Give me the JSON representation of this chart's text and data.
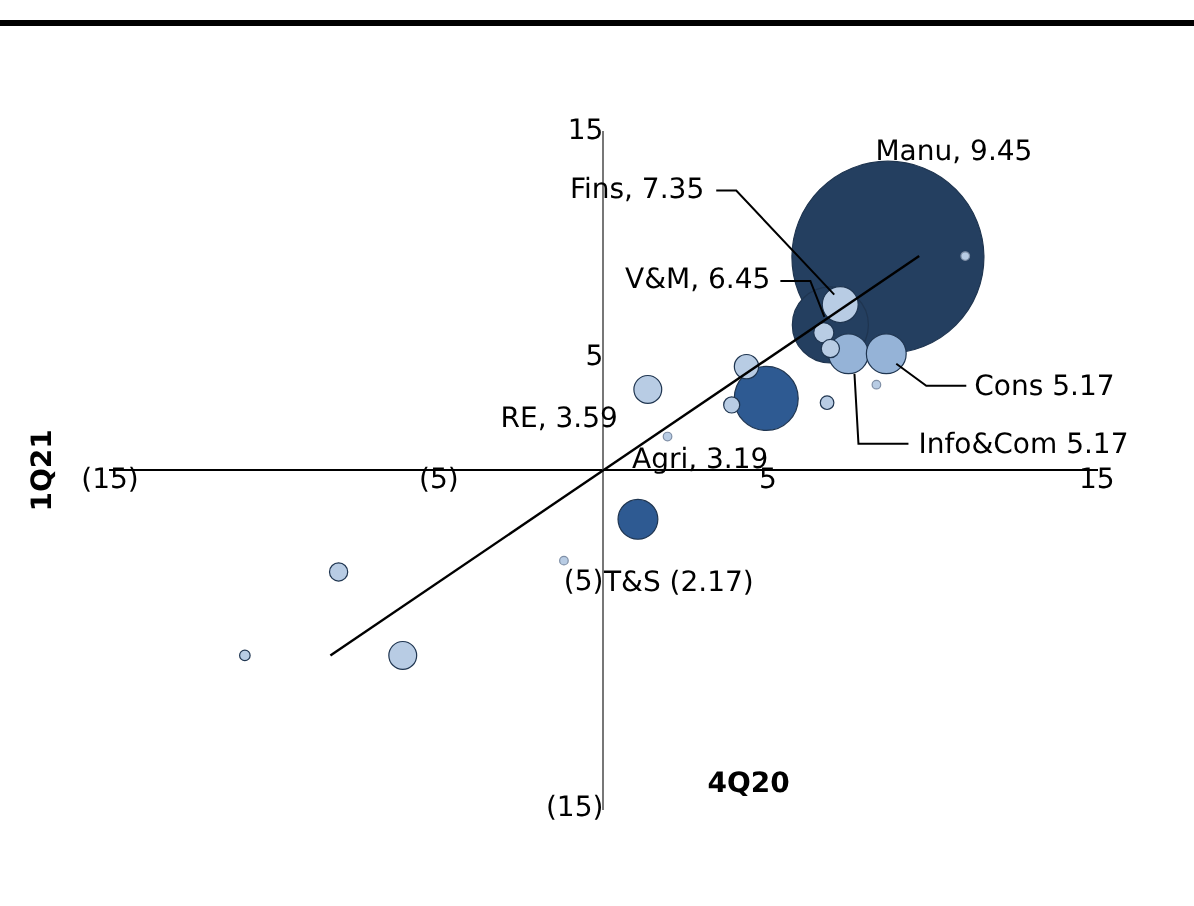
{
  "chart_data": {
    "type": "bubble",
    "xlabel": "4Q20",
    "ylabel": "1Q21",
    "xlim": [
      -15,
      15
    ],
    "ylim": [
      -15,
      15
    ],
    "xticks": [
      {
        "value": -15,
        "label": "(15)"
      },
      {
        "value": -5,
        "label": "(5)"
      },
      5,
      15
    ],
    "yticks": [
      {
        "value": -15,
        "label": "(15)"
      },
      {
        "value": -5,
        "label": "(5)"
      },
      5,
      15
    ],
    "grid": false,
    "legend": false,
    "series": [
      {
        "x": [
          8.65,
          6.9,
          4.95,
          1.05,
          7.45,
          8.6,
          7.2,
          1.35,
          -6.1,
          4.35,
          6.7,
          6.9,
          -8.05,
          3.9,
          6.8,
          -10.9,
          -1.2,
          8.3,
          11,
          1.95
        ],
        "values": [
          9.45,
          6.45,
          3.19,
          -2.17,
          5.17,
          5.17,
          7.35,
          3.59,
          -8.2,
          4.6,
          6.1,
          5.4,
          -4.5,
          2.9,
          3.0,
          -8.2,
          -4.0,
          3.8,
          9.5,
          1.5
        ],
        "sizes": [
          1,
          0.157,
          0.111,
          0.043,
          0.043,
          0.043,
          0.035,
          0.021,
          0.021,
          0.016,
          0.011,
          0.009,
          0.009,
          0.007,
          0.005,
          0.003,
          0.002,
          0.002,
          0.002,
          0.002
        ],
        "colors": [
          "#243f60",
          "#243f60",
          "#2e5a92",
          "#2e5a92",
          "#95b3d7",
          "#95b3d7",
          "#b8cce4",
          "#b8cce4",
          "#b8cce4",
          "#b8cce4",
          "#b8cce4",
          "#b8cce4",
          "#b8cce4",
          "#b8cce4",
          "#b8cce4",
          "#b8cce4",
          "#b8cce4",
          "#b8cce4",
          "#b8cce4",
          "#b8cce4"
        ],
        "value_labels": [
          "Manu, 9.45",
          "V&M, 6.45",
          "Agri, 3.19",
          "T&S (2.17)",
          "Info&Com 5.17",
          "Cons 5.17",
          "Fins, 7.35",
          "RE, 3.59",
          null,
          null,
          null,
          null,
          null,
          null,
          null,
          null,
          null,
          null,
          null,
          null
        ]
      },
      {
        "type": "line",
        "color": "#000000",
        "x": [
          -8.3,
          9.6
        ],
        "values": [
          -8.2,
          9.5
        ]
      }
    ]
  }
}
